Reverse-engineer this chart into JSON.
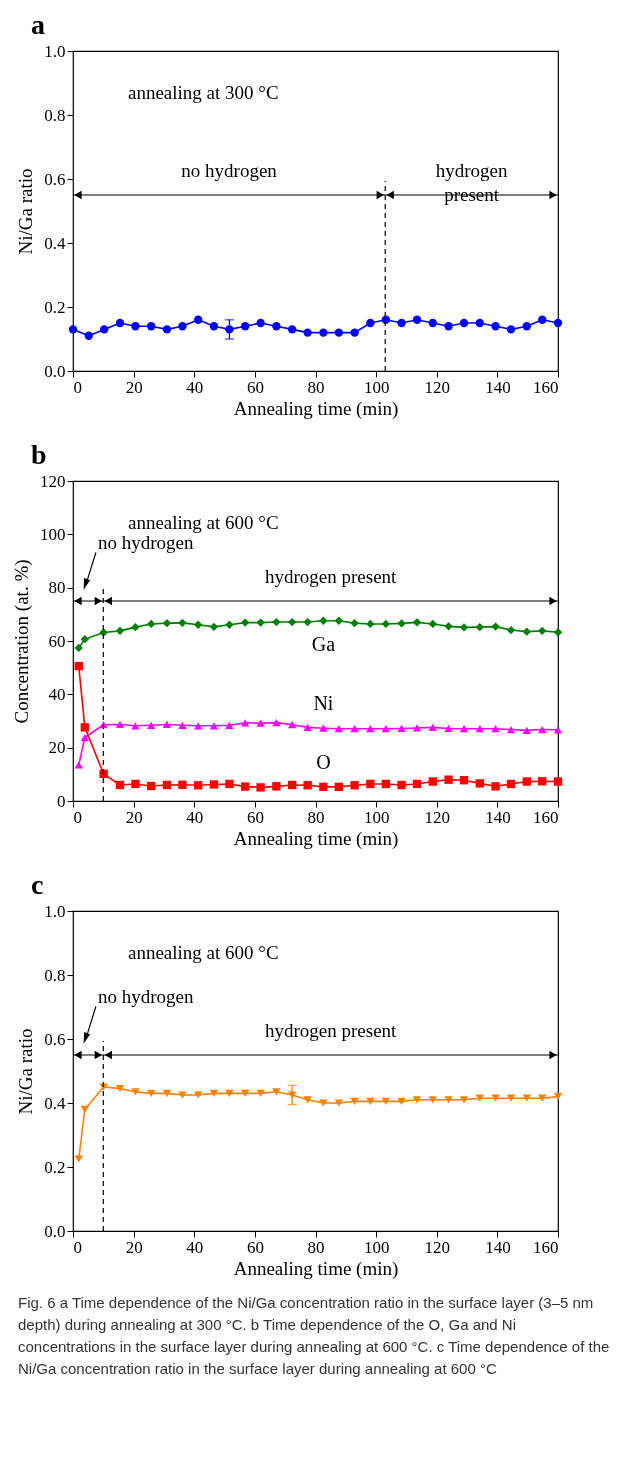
{
  "chart_data": [
    {
      "type": "line",
      "title": "a",
      "xlabel": "Annealing time (min)",
      "ylabel": "Ni/Ga ratio",
      "x": [
        0,
        5.2,
        10.3,
        15.5,
        20.6,
        25.8,
        31.0,
        36.1,
        41.3,
        46.5,
        51.6,
        56.8,
        61.9,
        67.1,
        72.3,
        77.4,
        82.6,
        87.7,
        92.9,
        98.1,
        103.2,
        108.4,
        113.5,
        118.7,
        123.9,
        129.0,
        134.2,
        139.4,
        144.5,
        149.7,
        154.8,
        160.0
      ],
      "series": [
        {
          "color": "#0000ff",
          "marker": "circle",
          "values": [
            0.13,
            0.11,
            0.13,
            0.15,
            0.14,
            0.14,
            0.13,
            0.14,
            0.16,
            0.14,
            0.13,
            0.14,
            0.15,
            0.14,
            0.13,
            0.12,
            0.12,
            0.12,
            0.12,
            0.15,
            0.16,
            0.15,
            0.16,
            0.15,
            0.14,
            0.15,
            0.15,
            0.14,
            0.13,
            0.14,
            0.16,
            0.15
          ],
          "errors": [
            null,
            null,
            null,
            null,
            null,
            null,
            null,
            null,
            null,
            null,
            0.03,
            null,
            null,
            null,
            null,
            null,
            null,
            null,
            null,
            null,
            null,
            null,
            null,
            null,
            null,
            null,
            null,
            null,
            null,
            null,
            null,
            null
          ]
        }
      ],
      "xlim": [
        0,
        160
      ],
      "xticks": [
        0,
        20,
        40,
        60,
        80,
        100,
        120,
        140,
        160
      ],
      "ylim": [
        0,
        1
      ],
      "yticks": [
        {
          "value": 0,
          "label": "0.0"
        },
        {
          "value": 0.2,
          "label": "0.2"
        },
        {
          "value": 0.4,
          "label": "0.4"
        },
        {
          "value": 0.6,
          "label": "0.6"
        },
        {
          "value": 0.8,
          "label": "0.8"
        },
        {
          "value": 1,
          "label": "1.0"
        }
      ],
      "ref_lines": [
        {
          "axis": "x",
          "value": 103,
          "line_style": "dashed"
        },
        {
          "axis": "y",
          "value": 0.55
        }
      ],
      "annotations": [
        "annealing at 300 °C",
        "no hydrogen",
        "hydrogen present"
      ]
    },
    {
      "type": "line",
      "title": "b",
      "xlabel": "Annealing time (min)",
      "ylabel": "Concentration (at. %)",
      "x": [
        1.9,
        3.9,
        10.1,
        15.5,
        20.6,
        25.8,
        31.0,
        36.1,
        41.3,
        46.5,
        51.6,
        56.8,
        61.9,
        67.1,
        72.3,
        77.4,
        82.6,
        87.7,
        92.9,
        98.1,
        103.2,
        108.4,
        113.5,
        118.7,
        123.9,
        129.0,
        134.2,
        139.4,
        144.5,
        149.7,
        154.8,
        160.0
      ],
      "series": [
        {
          "name": "Ga",
          "color": "#008000",
          "marker": "diamond",
          "values": [
            57.4,
            60.7,
            63.2,
            63.8,
            65.2,
            66.4,
            66.7,
            66.8,
            66.1,
            65.3,
            66.1,
            66.9,
            66.9,
            67.1,
            67.1,
            67.1,
            67.6,
            67.6,
            66.7,
            66.4,
            66.4,
            66.6,
            67.0,
            66.4,
            65.5,
            65.1,
            65.2,
            65.4,
            64.1,
            63.5,
            63.8,
            63.3
          ]
        },
        {
          "name": "Ni",
          "color": "#ff00ff",
          "marker": "triangle",
          "values": [
            13.5,
            23.8,
            28.6,
            28.7,
            28.2,
            28.4,
            28.7,
            28.4,
            28.2,
            28.2,
            28.4,
            29.3,
            29.2,
            29.4,
            28.6,
            27.6,
            27.3,
            27.1,
            27.1,
            27.1,
            27.1,
            27.2,
            27.4,
            27.6,
            27.2,
            27.1,
            27.1,
            27.1,
            26.8,
            26.5,
            26.8,
            26.7
          ]
        },
        {
          "name": "O",
          "color": "#ff0000",
          "marker": "square",
          "values": [
            50.6,
            27.6,
            10.2,
            6.0,
            6.4,
            5.6,
            6.0,
            6.1,
            5.9,
            6.2,
            6.4,
            5.4,
            5.1,
            5.5,
            6.0,
            5.9,
            5.3,
            5.3,
            5.9,
            6.4,
            6.4,
            6.0,
            6.4,
            7.3,
            8.0,
            7.8,
            6.6,
            5.5,
            6.4,
            7.3,
            7.4,
            7.3
          ]
        }
      ],
      "xlim": [
        0,
        160
      ],
      "xticks": [
        0,
        20,
        40,
        60,
        80,
        100,
        120,
        140,
        160
      ],
      "ylim": [
        0,
        120
      ],
      "yticks": [
        0,
        20,
        40,
        60,
        80,
        100,
        120
      ],
      "ref_lines": [
        {
          "axis": "x",
          "value": 10,
          "line_style": "dashed"
        },
        {
          "axis": "y",
          "value": 75
        }
      ],
      "annotations": [
        "annealing at 600 °C",
        "no hydrogen",
        "hydrogen present"
      ]
    },
    {
      "type": "line",
      "title": "c",
      "xlabel": "Annealing time (min)",
      "ylabel": "Ni/Ga ratio",
      "x": [
        1.9,
        3.9,
        10.1,
        15.5,
        20.6,
        25.8,
        31.0,
        36.1,
        41.3,
        46.5,
        51.6,
        56.8,
        61.9,
        67.1,
        72.3,
        77.4,
        82.6,
        87.7,
        92.9,
        98.1,
        103.2,
        108.4,
        113.5,
        118.7,
        123.9,
        129.0,
        134.2,
        139.4,
        144.5,
        149.7,
        154.8,
        160.0
      ],
      "series": [
        {
          "color": "#ff7f00",
          "marker": "triangle-down",
          "values": [
            0.225,
            0.38,
            0.45,
            0.445,
            0.435,
            0.43,
            0.43,
            0.425,
            0.425,
            0.43,
            0.43,
            0.43,
            0.43,
            0.435,
            0.425,
            0.41,
            0.4,
            0.4,
            0.405,
            0.405,
            0.405,
            0.405,
            0.41,
            0.41,
            0.41,
            0.41,
            0.415,
            0.415,
            0.415,
            0.415,
            0.415,
            0.42
          ],
          "errors": [
            null,
            null,
            null,
            null,
            null,
            null,
            null,
            null,
            null,
            null,
            null,
            null,
            null,
            null,
            0.03,
            null,
            null,
            null,
            null,
            null,
            null,
            null,
            null,
            null,
            null,
            null,
            null,
            null,
            null,
            null,
            null,
            null
          ]
        }
      ],
      "xlim": [
        0,
        160
      ],
      "xticks": [
        0,
        20,
        40,
        60,
        80,
        100,
        120,
        140,
        160
      ],
      "ylim": [
        0,
        1
      ],
      "yticks": [
        {
          "value": 0,
          "label": "0.0"
        },
        {
          "value": 0.2,
          "label": "0.2"
        },
        {
          "value": 0.4,
          "label": "0.4"
        },
        {
          "value": 0.6,
          "label": "0.6"
        },
        {
          "value": 0.8,
          "label": "0.8"
        },
        {
          "value": 1,
          "label": "1.0"
        }
      ],
      "ref_lines": [
        {
          "axis": "x",
          "value": 10,
          "line_style": "dashed"
        },
        {
          "axis": "y",
          "value": 0.55
        }
      ],
      "annotations": [
        "annealing at 600 °C",
        "no hydrogen",
        "hydrogen present",
        "Fig. 6 a Time dependence of the Ni/Ga concentration ratio in the surface layer (3–5 nm depth) during annealing at 300 °C. b Time dependence of the O, Ga and Ni concentrations in the surface layer during annealing at 600 °C. c Time dependence of the Ni/Ga concentration ratio in the surface layer during annealing at 600 °C"
      ]
    }
  ]
}
